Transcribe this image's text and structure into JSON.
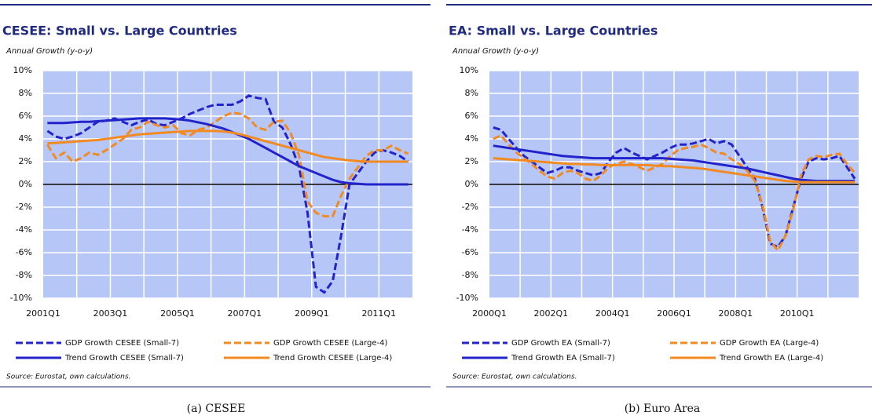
{
  "chart_data": [
    {
      "type": "line",
      "title": "CESEE: Small vs. Large Countries",
      "subtitle": "Annual Growth (y-o-y)",
      "source": "Source: Eurostat, own calculations.",
      "caption": "(a)  CESEE",
      "categories": [
        "2001Q1",
        null,
        null,
        null,
        null,
        null,
        null,
        null,
        "2003Q1",
        null,
        null,
        null,
        null,
        null,
        null,
        null,
        "2005Q1",
        null,
        null,
        null,
        null,
        null,
        null,
        null,
        "2007Q1",
        null,
        null,
        null,
        null,
        null,
        null,
        null,
        "2009Q1",
        null,
        null,
        null,
        null,
        null,
        null,
        null,
        "2011Q1",
        null,
        null,
        null
      ],
      "ylim": [
        -10,
        10
      ],
      "yticks": [
        {
          "value": -10,
          "label": "-10%"
        },
        {
          "value": -8,
          "label": "-8%"
        },
        {
          "value": -6,
          "label": "-6%"
        },
        {
          "value": -4,
          "label": "-4%"
        },
        {
          "value": -2,
          "label": "-2%"
        },
        {
          "value": 0,
          "label": "0%"
        },
        {
          "value": 2,
          "label": "2%"
        },
        {
          "value": 4,
          "label": "4%"
        },
        {
          "value": 6,
          "label": "6%"
        },
        {
          "value": 8,
          "label": "8%"
        },
        {
          "value": 10,
          "label": "10%"
        }
      ],
      "grid": true,
      "series": [
        {
          "name": "GDP Growth CESEE (Small-7)",
          "color": "#2323cc",
          "dash": true,
          "values": [
            4.7,
            4.2,
            4.0,
            4.2,
            4.5,
            5.0,
            5.5,
            5.6,
            5.8,
            5.5,
            5.2,
            5.5,
            5.7,
            5.3,
            5.2,
            5.5,
            5.8,
            6.2,
            6.5,
            6.8,
            7.0,
            7.0,
            7.0,
            7.3,
            7.8,
            7.6,
            7.5,
            5.5,
            5.0,
            3.5,
            1.5,
            -2.5,
            -9.0,
            -9.5,
            -8.5,
            -4.5,
            0.0,
            1.0,
            2.0,
            2.8,
            3.0,
            2.8,
            2.5,
            2.0
          ]
        },
        {
          "name": "GDP Growth CESEE (Large-4)",
          "color": "#f28a22",
          "dash": true,
          "values": [
            3.5,
            2.3,
            2.8,
            2.0,
            2.3,
            2.8,
            2.6,
            3.0,
            3.5,
            4.0,
            4.8,
            5.0,
            5.5,
            5.2,
            5.0,
            5.2,
            4.5,
            4.3,
            4.8,
            5.0,
            5.5,
            6.0,
            6.3,
            6.2,
            5.8,
            5.0,
            4.8,
            5.5,
            5.6,
            4.5,
            2.5,
            -1.5,
            -2.5,
            -2.8,
            -2.8,
            -1.0,
            0.5,
            1.5,
            2.5,
            3.0,
            3.0,
            3.4,
            3.0,
            2.7
          ]
        },
        {
          "name": "Trend Growth CESEE (Small-7)",
          "color": "#2323cc",
          "dash": false,
          "values": [
            5.4,
            5.4,
            5.4,
            5.45,
            5.5,
            5.5,
            5.55,
            5.6,
            5.65,
            5.7,
            5.75,
            5.8,
            5.8,
            5.8,
            5.8,
            5.75,
            5.7,
            5.6,
            5.45,
            5.3,
            5.1,
            4.9,
            4.6,
            4.3,
            4.0,
            3.6,
            3.2,
            2.8,
            2.4,
            2.0,
            1.6,
            1.3,
            1.0,
            0.7,
            0.4,
            0.2,
            0.1,
            0.05,
            0,
            0,
            0,
            0,
            0,
            0
          ]
        },
        {
          "name": "Trend Growth CESEE (Large-4)",
          "color": "#f28a22",
          "dash": false,
          "values": [
            3.6,
            3.65,
            3.7,
            3.75,
            3.8,
            3.85,
            3.9,
            4.0,
            4.1,
            4.2,
            4.3,
            4.4,
            4.45,
            4.5,
            4.55,
            4.6,
            4.65,
            4.7,
            4.7,
            4.7,
            4.7,
            4.65,
            4.55,
            4.4,
            4.2,
            4.0,
            3.8,
            3.6,
            3.4,
            3.2,
            3.0,
            2.8,
            2.6,
            2.4,
            2.3,
            2.2,
            2.1,
            2.05,
            2.0,
            2.0,
            2.0,
            2.0,
            2.0,
            2.0
          ]
        }
      ]
    },
    {
      "type": "line",
      "title": "EA: Small vs. Large Countries",
      "subtitle": "Annual Growth (y-o-y)",
      "source": "Source: Eurostat, own calculations.",
      "caption": "(b)  Euro Area",
      "categories": [
        "2000Q1",
        null,
        null,
        null,
        null,
        null,
        null,
        null,
        "2002Q1",
        null,
        null,
        null,
        null,
        null,
        null,
        null,
        "2004Q1",
        null,
        null,
        null,
        null,
        null,
        null,
        null,
        "2006Q1",
        null,
        null,
        null,
        null,
        null,
        null,
        null,
        "2008Q1",
        null,
        null,
        null,
        null,
        null,
        null,
        null,
        "2010Q1",
        null,
        null,
        null,
        null,
        null,
        null,
        null
      ],
      "ylim": [
        -10,
        10
      ],
      "yticks": [
        {
          "value": -10,
          "label": "-10%"
        },
        {
          "value": -8,
          "label": "-8%"
        },
        {
          "value": -6,
          "label": "-6%"
        },
        {
          "value": -4,
          "label": "-4%"
        },
        {
          "value": -2,
          "label": "-2%"
        },
        {
          "value": 0,
          "label": "0%"
        },
        {
          "value": 2,
          "label": "2%"
        },
        {
          "value": 4,
          "label": "4%"
        },
        {
          "value": 6,
          "label": "6%"
        },
        {
          "value": 8,
          "label": "8%"
        },
        {
          "value": 10,
          "label": "10%"
        }
      ],
      "grid": true,
      "series": [
        {
          "name": "GDP Growth EA (Small-7)",
          "color": "#2323cc",
          "dash": true,
          "values": [
            5.0,
            4.8,
            4.0,
            3.2,
            2.5,
            2.0,
            1.5,
            1.0,
            1.2,
            1.5,
            1.5,
            1.2,
            1.0,
            0.8,
            1.0,
            2.0,
            2.8,
            3.2,
            2.8,
            2.5,
            2.2,
            2.5,
            2.8,
            3.2,
            3.5,
            3.5,
            3.6,
            3.8,
            4.0,
            3.6,
            3.8,
            3.5,
            2.5,
            1.5,
            0.5,
            -2.0,
            -5.2,
            -5.5,
            -4.5,
            -2.0,
            0.5,
            2.0,
            2.3,
            2.2,
            2.3,
            2.5,
            1.5,
            0.5
          ]
        },
        {
          "name": "GDP Growth EA (Large-4)",
          "color": "#f28a22",
          "dash": true,
          "values": [
            4.0,
            4.3,
            3.5,
            2.8,
            2.3,
            1.8,
            1.2,
            0.7,
            0.5,
            1.0,
            1.2,
            1.0,
            0.5,
            0.3,
            0.8,
            1.5,
            1.8,
            2.0,
            1.8,
            1.5,
            1.2,
            1.5,
            1.8,
            2.5,
            3.0,
            3.2,
            3.3,
            3.5,
            3.2,
            2.8,
            2.7,
            2.2,
            1.8,
            1.2,
            0.3,
            -1.8,
            -5.0,
            -5.8,
            -4.5,
            -2.2,
            0.8,
            2.2,
            2.5,
            2.4,
            2.6,
            2.7,
            1.8,
            1.0
          ]
        },
        {
          "name": "Trend Growth EA (Small-7)",
          "color": "#2323cc",
          "dash": false,
          "values": [
            3.4,
            3.3,
            3.2,
            3.1,
            3.0,
            2.9,
            2.8,
            2.7,
            2.6,
            2.5,
            2.45,
            2.4,
            2.35,
            2.3,
            2.3,
            2.3,
            2.3,
            2.3,
            2.3,
            2.3,
            2.3,
            2.3,
            2.3,
            2.25,
            2.2,
            2.15,
            2.1,
            2.0,
            1.9,
            1.8,
            1.7,
            1.6,
            1.5,
            1.4,
            1.25,
            1.1,
            0.95,
            0.8,
            0.65,
            0.5,
            0.4,
            0.35,
            0.3,
            0.3,
            0.3,
            0.3,
            0.3,
            0.3
          ]
        },
        {
          "name": "Trend Growth EA (Large-4)",
          "color": "#f28a22",
          "dash": false,
          "values": [
            2.3,
            2.25,
            2.2,
            2.15,
            2.1,
            2.05,
            2.0,
            1.95,
            1.9,
            1.85,
            1.8,
            1.8,
            1.75,
            1.75,
            1.7,
            1.7,
            1.7,
            1.7,
            1.7,
            1.7,
            1.7,
            1.65,
            1.6,
            1.6,
            1.55,
            1.5,
            1.45,
            1.4,
            1.3,
            1.2,
            1.1,
            1.0,
            0.9,
            0.8,
            0.7,
            0.6,
            0.5,
            0.4,
            0.3,
            0.25,
            0.2,
            0.2,
            0.2,
            0.2,
            0.2,
            0.2,
            0.2,
            0.2
          ]
        }
      ]
    }
  ]
}
